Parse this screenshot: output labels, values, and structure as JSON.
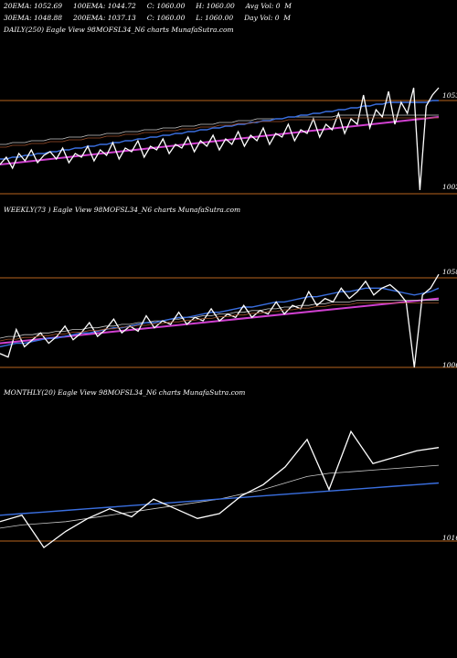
{
  "header": {
    "line1": "20EMA: 1052.69     100EMA: 1044.72     C: 1060.00     H: 1060.00     Avg Vol: 0  M",
    "line2": "30EMA: 1048.88     200EMA: 1037.13     C: 1060.00     L: 1060.00     Day Vol: 0  M"
  },
  "colors": {
    "background": "#000000",
    "price": "#ffffff",
    "ema_fast": "#3a6fe0",
    "ema_slow": "#d040d0",
    "ema_mid": "#c8c8c8",
    "ema_brown": "#a0522d",
    "level_line": "#b8651e"
  },
  "chart_data": [
    {
      "type": "line",
      "title": "DAILY(250) Eagle  View  98MOFSL34_N6  charts MunafaSutra.com",
      "level_labels": [
        "1053",
        "1002"
      ],
      "series": [
        {
          "values": [
            1018,
            1022,
            1016,
            1024,
            1020,
            1026,
            1019,
            1023,
            1025,
            1021,
            1027,
            1019,
            1024,
            1022,
            1028,
            1020,
            1026,
            1023,
            1030,
            1021,
            1027,
            1025,
            1031,
            1022,
            1028,
            1026,
            1032,
            1024,
            1029,
            1027,
            1033,
            1025,
            1031,
            1028,
            1034,
            1026,
            1032,
            1029,
            1036,
            1028,
            1034,
            1031,
            1038,
            1029,
            1035,
            1033,
            1040,
            1031,
            1037,
            1035,
            1043,
            1033,
            1040,
            1037,
            1046,
            1035,
            1043,
            1040,
            1056,
            1038,
            1048,
            1044,
            1058,
            1040,
            1052,
            1046,
            1060,
            1004,
            1050,
            1056,
            1060
          ]
        },
        {
          "values": [
            1021,
            1021,
            1022,
            1022,
            1023,
            1023,
            1024,
            1024,
            1025,
            1025,
            1026,
            1026,
            1027,
            1027,
            1028,
            1028,
            1029,
            1029,
            1030,
            1030,
            1031,
            1031,
            1032,
            1032,
            1033,
            1033,
            1034,
            1034,
            1035,
            1035,
            1036,
            1036,
            1037,
            1037,
            1038,
            1038,
            1039,
            1039,
            1040,
            1040,
            1041,
            1041,
            1042,
            1042,
            1043,
            1043,
            1044,
            1044,
            1045,
            1045,
            1046,
            1046,
            1047,
            1047,
            1048,
            1048,
            1049,
            1049,
            1050,
            1050,
            1051,
            1051,
            1052,
            1052,
            1052,
            1052,
            1052,
            1052,
            1052,
            1053,
            1053
          ]
        },
        {
          "values": [
            1029,
            1029,
            1030,
            1030,
            1030,
            1031,
            1031,
            1031,
            1032,
            1032,
            1032,
            1033,
            1033,
            1033,
            1034,
            1034,
            1034,
            1035,
            1035,
            1035,
            1036,
            1036,
            1036,
            1037,
            1037,
            1037,
            1038,
            1038,
            1038,
            1039,
            1039,
            1039,
            1040,
            1040,
            1040,
            1041,
            1041,
            1041,
            1042,
            1042,
            1042,
            1043,
            1043,
            1043,
            1043,
            1043,
            1044,
            1044,
            1044,
            1044,
            1044,
            1044,
            1044,
            1044,
            1045,
            1045,
            1045,
            1045,
            1045,
            1045,
            1045,
            1045,
            1045,
            1045,
            1045,
            1045,
            1045,
            1045,
            1045,
            1045,
            1045
          ]
        }
      ]
    },
    {
      "type": "line",
      "title": "WEEKLY(73                    ) Eagle  View  98MOFSL34_N6  charts MunafaSutra.com",
      "level_labels": [
        "1058",
        "1006"
      ],
      "series": [
        {
          "values": [
            1014,
            1012,
            1028,
            1018,
            1022,
            1026,
            1020,
            1024,
            1030,
            1022,
            1026,
            1032,
            1024,
            1028,
            1034,
            1026,
            1030,
            1027,
            1036,
            1029,
            1033,
            1031,
            1038,
            1031,
            1035,
            1033,
            1040,
            1033,
            1037,
            1035,
            1042,
            1035,
            1039,
            1037,
            1044,
            1037,
            1042,
            1040,
            1050,
            1042,
            1046,
            1044,
            1052,
            1046,
            1050,
            1056,
            1048,
            1052,
            1054,
            1050,
            1044,
            1006,
            1048,
            1052,
            1060
          ]
        },
        {
          "values": [
            1018,
            1019,
            1020,
            1020,
            1021,
            1022,
            1023,
            1023,
            1024,
            1025,
            1026,
            1026,
            1027,
            1028,
            1029,
            1029,
            1030,
            1031,
            1032,
            1032,
            1033,
            1034,
            1035,
            1035,
            1036,
            1037,
            1038,
            1038,
            1039,
            1040,
            1041,
            1041,
            1042,
            1043,
            1044,
            1044,
            1045,
            1046,
            1047,
            1047,
            1048,
            1049,
            1050,
            1050,
            1051,
            1052,
            1052,
            1052,
            1051,
            1050,
            1049,
            1048,
            1049,
            1050,
            1052
          ]
        },
        {
          "values": [
            1023,
            1024,
            1024,
            1025,
            1025,
            1026,
            1026,
            1027,
            1027,
            1028,
            1028,
            1029,
            1029,
            1030,
            1030,
            1031,
            1031,
            1032,
            1032,
            1033,
            1033,
            1034,
            1034,
            1035,
            1035,
            1036,
            1036,
            1037,
            1037,
            1038,
            1038,
            1039,
            1039,
            1040,
            1040,
            1041,
            1041,
            1042,
            1042,
            1043,
            1043,
            1044,
            1044,
            1044,
            1045,
            1045,
            1045,
            1045,
            1045,
            1045,
            1045,
            1045,
            1045,
            1045,
            1045
          ]
        }
      ]
    },
    {
      "type": "line",
      "title": "MONTHLY(20) Eagle  View  98MOFSL34_N6  charts MunafaSutra.com",
      "level_labels": [
        "1016"
      ],
      "series": [
        {
          "values": [
            1028,
            1032,
            1012,
            1022,
            1030,
            1036,
            1031,
            1042,
            1036,
            1030,
            1033,
            1044,
            1051,
            1062,
            1079,
            1048,
            1084,
            1064,
            1068,
            1072,
            1074
          ]
        },
        {
          "values": [
            1032,
            1033,
            1034,
            1035,
            1036,
            1037,
            1038,
            1039,
            1040,
            1041,
            1042,
            1043,
            1044,
            1045,
            1046,
            1047,
            1048,
            1049,
            1050,
            1051,
            1052
          ]
        },
        {
          "values": [
            1024,
            1026,
            1027,
            1028,
            1030,
            1032,
            1034,
            1036,
            1038,
            1040,
            1042,
            1045,
            1048,
            1052,
            1056,
            1058,
            1059,
            1060,
            1061,
            1062,
            1063
          ]
        }
      ]
    }
  ]
}
